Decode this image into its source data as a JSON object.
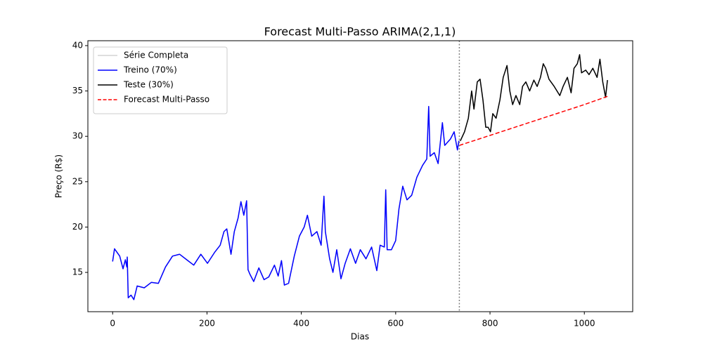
{
  "chart_data": {
    "type": "line",
    "title": "Forecast Multi-Passo ARIMA(2,1,1)",
    "x_label": "Dias",
    "y_label": "Preço (R$)",
    "xlim": [
      -52.5,
      1102.5
    ],
    "ylim": [
      10.67,
      40.54
    ],
    "xticks": [
      0,
      200,
      400,
      600,
      800,
      1000
    ],
    "yticks": [
      15,
      20,
      25,
      30,
      35,
      40
    ],
    "legend": "upper left",
    "vline": 735,
    "vline_color": "#808080",
    "series": [
      {
        "name": "Série Completa",
        "color": "#d3d3d3",
        "dash": false,
        "x": [
          0,
          4,
          15,
          22,
          27,
          30,
          31,
          33,
          39,
          45,
          52,
          67,
          82,
          97,
          112,
          127,
          142,
          157,
          172,
          187,
          201,
          216,
          228,
          236,
          242,
          251,
          258,
          266,
          272,
          278,
          284,
          287,
          291,
          299,
          310,
          321,
          331,
          343,
          351,
          358,
          364,
          373,
          385,
          396,
          406,
          413,
          422,
          433,
          442,
          448,
          451,
          460,
          467,
          475,
          484,
          493,
          504,
          515,
          525,
          537,
          549,
          560,
          567,
          576,
          579,
          582,
          591,
          600,
          607,
          615,
          624,
          634,
          645,
          657,
          666,
          670,
          673,
          682,
          690,
          699,
          704,
          716,
          724,
          731,
          734,
          737,
          746,
          754,
          761,
          766,
          773,
          779,
          785,
          791,
          796,
          801,
          806,
          813,
          821,
          828,
          836,
          842,
          848,
          855,
          863,
          869,
          876,
          884,
          893,
          900,
          907,
          913,
          918,
          925,
          936,
          948,
          955,
          964,
          972,
          978,
          985,
          990,
          994,
          1003,
          1010,
          1018,
          1027,
          1033,
          1039,
          1045,
          1049
        ],
        "values": [
          16.2,
          17.6,
          16.8,
          15.4,
          16.4,
          15.6,
          16.7,
          12.2,
          12.5,
          12.0,
          13.5,
          13.3,
          13.9,
          13.8,
          15.6,
          16.8,
          17.0,
          16.4,
          15.8,
          17.0,
          16.0,
          17.2,
          18.0,
          19.5,
          19.8,
          17.0,
          19.5,
          21.0,
          22.8,
          21.3,
          22.9,
          15.3,
          14.8,
          14.0,
          15.5,
          14.2,
          14.5,
          15.8,
          14.6,
          16.3,
          13.6,
          13.8,
          16.8,
          19.0,
          20.0,
          21.3,
          19.0,
          19.5,
          18.0,
          23.4,
          19.5,
          16.5,
          15.0,
          17.5,
          14.3,
          16.0,
          17.6,
          16.0,
          17.5,
          16.5,
          17.8,
          15.2,
          18.0,
          17.8,
          24.1,
          17.5,
          17.5,
          18.5,
          22.0,
          24.5,
          23.0,
          23.5,
          25.5,
          26.8,
          27.5,
          33.3,
          27.8,
          28.2,
          27.0,
          31.5,
          29.0,
          29.7,
          30.5,
          28.5,
          29.5,
          29.5,
          30.5,
          32.0,
          35.0,
          33.0,
          36.0,
          36.3,
          34.0,
          31.0,
          31.0,
          30.5,
          32.5,
          32.0,
          34.0,
          36.5,
          37.8,
          35.0,
          33.5,
          34.5,
          33.5,
          35.5,
          36.0,
          35.0,
          36.2,
          35.5,
          36.5,
          38.0,
          37.5,
          36.3,
          35.5,
          34.5,
          35.5,
          36.5,
          34.8,
          37.5,
          38.0,
          39.0,
          37.0,
          37.3,
          36.8,
          37.5,
          36.5,
          38.5,
          36.0,
          34.3,
          36.2
        ]
      },
      {
        "name": "Treino (70%)",
        "color": "#0000ff",
        "dash": false,
        "x": [
          0,
          4,
          15,
          22,
          27,
          30,
          31,
          33,
          39,
          45,
          52,
          67,
          82,
          97,
          112,
          127,
          142,
          157,
          172,
          187,
          201,
          216,
          228,
          236,
          242,
          251,
          258,
          266,
          272,
          278,
          284,
          287,
          291,
          299,
          310,
          321,
          331,
          343,
          351,
          358,
          364,
          373,
          385,
          396,
          406,
          413,
          422,
          433,
          442,
          448,
          451,
          460,
          467,
          475,
          484,
          493,
          504,
          515,
          525,
          537,
          549,
          560,
          567,
          576,
          579,
          582,
          591,
          600,
          607,
          615,
          624,
          634,
          645,
          657,
          666,
          670,
          673,
          682,
          690,
          699,
          704,
          716,
          724,
          731,
          734
        ],
        "values": [
          16.2,
          17.6,
          16.8,
          15.4,
          16.4,
          15.6,
          16.7,
          12.2,
          12.5,
          12.0,
          13.5,
          13.3,
          13.9,
          13.8,
          15.6,
          16.8,
          17.0,
          16.4,
          15.8,
          17.0,
          16.0,
          17.2,
          18.0,
          19.5,
          19.8,
          17.0,
          19.5,
          21.0,
          22.8,
          21.3,
          22.9,
          15.3,
          14.8,
          14.0,
          15.5,
          14.2,
          14.5,
          15.8,
          14.6,
          16.3,
          13.6,
          13.8,
          16.8,
          19.0,
          20.0,
          21.3,
          19.0,
          19.5,
          18.0,
          23.4,
          19.5,
          16.5,
          15.0,
          17.5,
          14.3,
          16.0,
          17.6,
          16.0,
          17.5,
          16.5,
          17.8,
          15.2,
          18.0,
          17.8,
          24.1,
          17.5,
          17.5,
          18.5,
          22.0,
          24.5,
          23.0,
          23.5,
          25.5,
          26.8,
          27.5,
          33.3,
          27.8,
          28.2,
          27.0,
          31.5,
          29.0,
          29.7,
          30.5,
          28.5,
          29.5
        ]
      },
      {
        "name": "Teste (30%)",
        "color": "#000000",
        "dash": false,
        "x": [
          737,
          746,
          754,
          761,
          766,
          773,
          779,
          785,
          791,
          796,
          801,
          806,
          813,
          821,
          828,
          836,
          842,
          848,
          855,
          863,
          869,
          876,
          884,
          893,
          900,
          907,
          913,
          918,
          925,
          936,
          948,
          955,
          964,
          972,
          978,
          985,
          990,
          994,
          1003,
          1010,
          1018,
          1027,
          1033,
          1039,
          1045,
          1049
        ],
        "values": [
          29.5,
          30.5,
          32.0,
          35.0,
          33.0,
          36.0,
          36.3,
          34.0,
          31.0,
          31.0,
          30.5,
          32.5,
          32.0,
          34.0,
          36.5,
          37.8,
          35.0,
          33.5,
          34.5,
          33.5,
          35.5,
          36.0,
          35.0,
          36.2,
          35.5,
          36.5,
          38.0,
          37.5,
          36.3,
          35.5,
          34.5,
          35.5,
          36.5,
          34.8,
          37.5,
          38.0,
          39.0,
          37.0,
          37.3,
          36.8,
          37.5,
          36.5,
          38.5,
          36.0,
          34.3,
          36.2
        ]
      },
      {
        "name": "Forecast Multi-Passo",
        "color": "#ff0000",
        "dash": true,
        "x": [
          735,
          800,
          900,
          1000,
          1049
        ],
        "values": [
          29.0,
          30.1,
          31.8,
          33.5,
          34.4
        ]
      }
    ]
  }
}
